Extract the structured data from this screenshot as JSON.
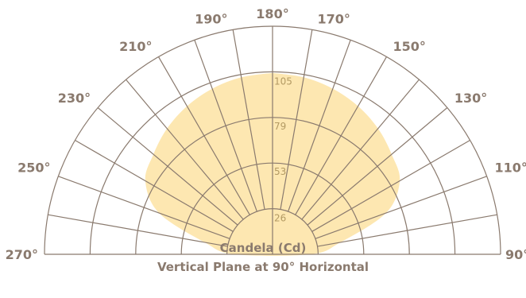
{
  "chart_data": {
    "type": "polar-candela",
    "units_label": "Candela (Cd)",
    "plane_label": "Vertical Plane at 90° Horizontal",
    "rings": [
      26,
      53,
      79,
      105
    ],
    "ring_labels": [
      "26",
      "53",
      "79",
      "105"
    ],
    "angle_labels": [
      "270°",
      "250°",
      "230°",
      "210°",
      "190°",
      "180°",
      "170°",
      "150°",
      "130°",
      "110°",
      "90°"
    ],
    "angle_values": [
      270,
      250,
      230,
      210,
      190,
      180,
      170,
      150,
      130,
      110,
      90
    ],
    "max_candela": 132,
    "distribution": {
      "angles_deg": [
        0,
        10,
        20,
        30,
        40,
        50,
        60,
        70,
        80,
        90
      ],
      "candela": [
        105,
        104,
        102,
        99,
        95,
        90,
        85,
        70,
        40,
        22
      ]
    },
    "colors": {
      "fill": "#fde7b1",
      "grid": "#8a7a6e",
      "text": "#8a7a6e",
      "ring_text": "#b39a63"
    }
  }
}
